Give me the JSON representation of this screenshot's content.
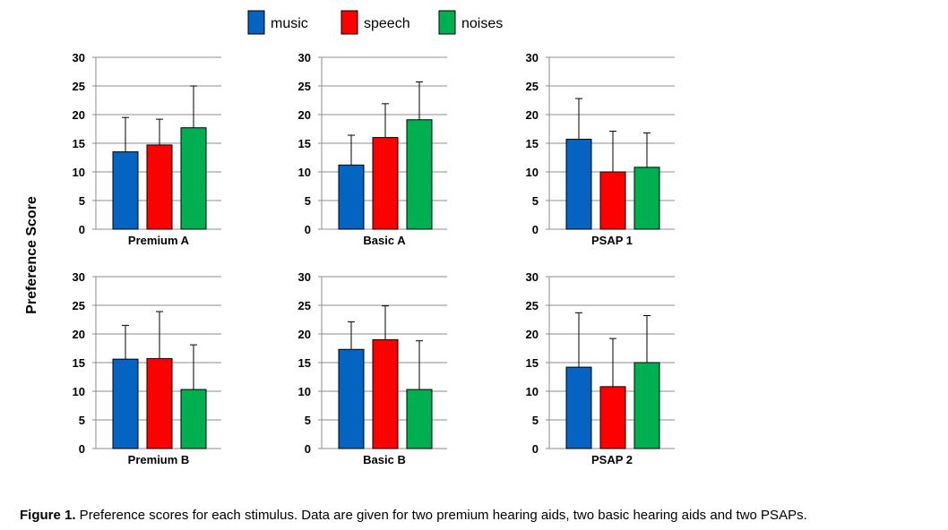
{
  "figure": {
    "caption_label": "Figure 1.",
    "caption_text": " Preference scores for each stimulus. Data are given for two premium hearing aids, two basic hearing aids and two PSAPs."
  },
  "chart_data": {
    "type": "bar",
    "ylabel": "Preference Score",
    "ylim": [
      0,
      30
    ],
    "yticks": [
      0,
      5,
      10,
      15,
      20,
      25,
      30
    ],
    "grid": true,
    "legend_position": "top",
    "series": [
      {
        "name": "music",
        "color": "#0563c1"
      },
      {
        "name": "speech",
        "color": "#ff0000"
      },
      {
        "name": "noises",
        "color": "#00b050"
      }
    ],
    "panels": [
      {
        "title": "Premium A",
        "values": [
          13.5,
          14.7,
          17.7
        ],
        "errors": [
          6.0,
          4.5,
          7.3
        ]
      },
      {
        "title": "Basic A",
        "values": [
          11.2,
          16.0,
          19.1
        ],
        "errors": [
          5.2,
          5.9,
          6.6
        ]
      },
      {
        "title": "PSAP 1",
        "values": [
          15.7,
          10.0,
          10.8
        ],
        "errors": [
          7.1,
          7.1,
          6.0
        ]
      },
      {
        "title": "Premium B",
        "values": [
          15.6,
          15.7,
          10.3
        ],
        "errors": [
          5.9,
          8.2,
          7.8
        ]
      },
      {
        "title": "Basic B",
        "values": [
          17.3,
          19.0,
          10.3
        ],
        "errors": [
          4.8,
          5.9,
          8.5
        ]
      },
      {
        "title": "PSAP 2",
        "values": [
          14.2,
          10.8,
          15.0
        ],
        "errors": [
          9.5,
          8.4,
          8.2
        ]
      }
    ]
  }
}
